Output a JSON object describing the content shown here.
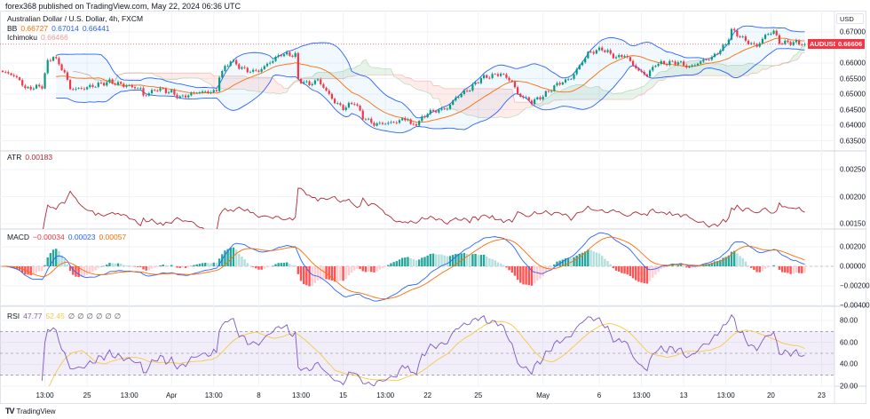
{
  "header": {
    "published": "forex368 published on TradingView.com, May 22, 2024 06:36 UTC"
  },
  "main": {
    "title": "Australian Dollar / U.S. Dollar, 4h, FXCM",
    "bb": {
      "label": "BB",
      "basis": "0.66727",
      "upper": "0.67014",
      "lower": "0.66441"
    },
    "ichimoku": {
      "label": "Ichimoku",
      "value": "0.66466"
    },
    "currency": "USD",
    "symbol_tag": "AUDUSD",
    "last_price": "0.66606"
  },
  "atr": {
    "label": "ATR",
    "value": "0.00183"
  },
  "macd": {
    "label": "MACD",
    "hist": "−0.00034",
    "macd": "0.00023",
    "signal": "0.00057"
  },
  "rsi": {
    "label": "RSI",
    "value": "47.77",
    "ma": "52.45",
    "hidden": [
      "∅",
      "∅",
      "∅",
      "∅",
      "∅",
      "∅"
    ]
  },
  "footer": {
    "brand": "TradingView"
  },
  "colors": {
    "up": "#089981",
    "down": "#f23645",
    "bb_basis": "#ff6d00",
    "bb_band": "#2962ff",
    "atr": "#b22833",
    "macd": "#2962ff",
    "signal": "#ff6d00",
    "rsi": "#7e57c2",
    "rsi_ma": "#f7c843"
  },
  "chart_data": [
    {
      "type": "candlestick",
      "title": "Australian Dollar / U.S. Dollar, 4h, FXCM",
      "ylim": [
        0.635,
        0.6725
      ],
      "yticks": [
        "0.67000",
        "0.66000",
        "0.65500",
        "0.65000",
        "0.64500",
        "0.64000",
        "0.63500"
      ],
      "xticks": [
        [
          "13:00",
          15
        ],
        [
          "25",
          30
        ],
        [
          "13:00",
          45
        ],
        [
          "Apr",
          60
        ],
        [
          "13:00",
          75
        ],
        [
          "8",
          91
        ],
        [
          "13:00",
          106
        ],
        [
          "15",
          121
        ],
        [
          "13:00",
          136
        ],
        [
          "22",
          151
        ],
        [
          "25",
          169
        ],
        [
          "May",
          192
        ],
        [
          "6",
          212
        ],
        [
          "13:00",
          227
        ],
        [
          "13",
          242
        ],
        [
          "13:00",
          257
        ],
        [
          "20",
          273
        ],
        [
          "23",
          291
        ]
      ],
      "close_path_bar_price": [
        [
          2,
          0.65686
        ],
        [
          6,
          0.65457
        ],
        [
          8,
          0.65171
        ],
        [
          14,
          0.65257
        ],
        [
          16,
          0.66029
        ],
        [
          18,
          0.66229
        ],
        [
          22,
          0.65686
        ],
        [
          24,
          0.65171
        ],
        [
          28,
          0.65171
        ],
        [
          38,
          0.654
        ],
        [
          43,
          0.65286
        ],
        [
          49,
          0.65171
        ],
        [
          50,
          0.64943
        ],
        [
          55,
          0.65171
        ],
        [
          60,
          0.65057
        ],
        [
          63,
          0.64886
        ],
        [
          69,
          0.65057
        ],
        [
          76,
          0.65086
        ],
        [
          77,
          0.656
        ],
        [
          81,
          0.66086
        ],
        [
          84,
          0.65886
        ],
        [
          87,
          0.65743
        ],
        [
          91,
          0.65743
        ],
        [
          95,
          0.66029
        ],
        [
          99,
          0.66286
        ],
        [
          104,
          0.66257
        ],
        [
          105,
          0.65457
        ],
        [
          109,
          0.65314
        ],
        [
          112,
          0.65457
        ],
        [
          118,
          0.64743
        ],
        [
          121,
          0.64543
        ],
        [
          125,
          0.64743
        ],
        [
          128,
          0.64257
        ],
        [
          132,
          0.64029
        ],
        [
          139,
          0.64086
        ],
        [
          144,
          0.64229
        ],
        [
          145,
          0.63971
        ],
        [
          148,
          0.64114
        ],
        [
          151,
          0.644
        ],
        [
          158,
          0.64543
        ],
        [
          161,
          0.64886
        ],
        [
          166,
          0.65171
        ],
        [
          170,
          0.65514
        ],
        [
          177,
          0.65657
        ],
        [
          181,
          0.654
        ],
        [
          183,
          0.65
        ],
        [
          188,
          0.64743
        ],
        [
          192,
          0.64943
        ],
        [
          197,
          0.65314
        ],
        [
          202,
          0.65514
        ],
        [
          208,
          0.66314
        ],
        [
          213,
          0.66457
        ],
        [
          218,
          0.66171
        ],
        [
          221,
          0.66257
        ],
        [
          226,
          0.65743
        ],
        [
          229,
          0.656
        ],
        [
          232,
          0.65971
        ],
        [
          240,
          0.66029
        ],
        [
          244,
          0.65857
        ],
        [
          249,
          0.66086
        ],
        [
          252,
          0.66171
        ],
        [
          257,
          0.666
        ],
        [
          259,
          0.67057
        ],
        [
          265,
          0.66657
        ],
        [
          268,
          0.66543
        ],
        [
          271,
          0.66886
        ],
        [
          274,
          0.67029
        ],
        [
          276,
          0.66657
        ],
        [
          282,
          0.66657
        ],
        [
          285,
          0.66606
        ]
      ],
      "indicators": [
        "BB",
        "Ichimoku"
      ]
    },
    {
      "type": "line",
      "name": "ATR",
      "ylim": [
        0.0014,
        0.0027
      ],
      "yticks": [
        "0.00250",
        "0.00200",
        "0.00150"
      ]
    },
    {
      "type": "line+bar",
      "name": "MACD",
      "ylim": [
        -0.0042,
        0.0028
      ],
      "yticks": [
        "0.00200",
        "0.00000",
        "−0.00200",
        "−0.00400"
      ]
    },
    {
      "type": "line",
      "name": "RSI",
      "ylim": [
        20,
        85
      ],
      "yticks": [
        "80.00",
        "60.00",
        "40.00",
        "20.00"
      ],
      "bands": [
        70,
        50,
        30
      ]
    }
  ]
}
